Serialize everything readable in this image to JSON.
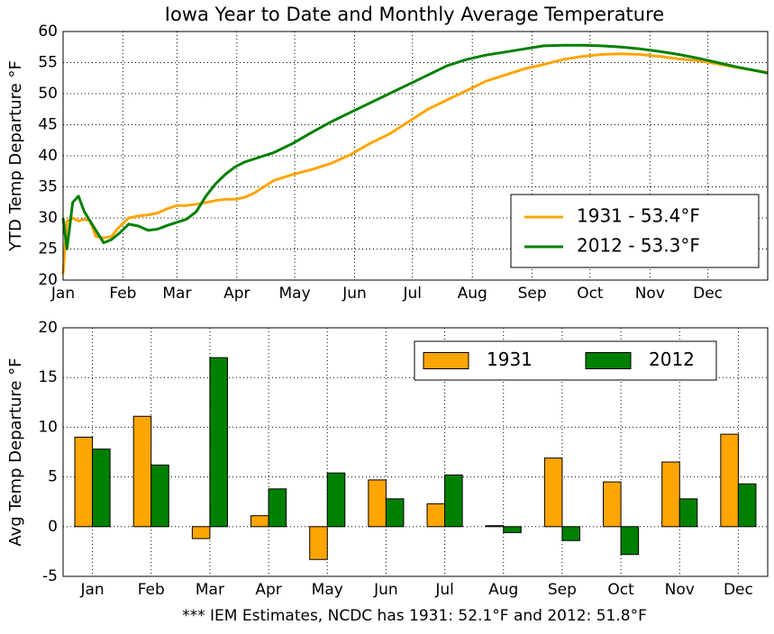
{
  "chart_data": [
    {
      "type": "line",
      "title": "Iowa Year to Date and Monthly Average Temperature",
      "y_label": "YTD Temp Departure °F",
      "x": [
        1,
        3,
        6,
        9,
        12,
        15,
        18,
        22,
        26,
        30,
        35,
        40,
        45,
        50,
        55,
        60,
        65,
        70,
        75,
        80,
        85,
        90,
        95,
        100,
        110,
        120,
        130,
        140,
        150,
        160,
        170,
        180,
        190,
        200,
        210,
        220,
        230,
        240,
        250,
        260,
        270,
        280,
        290,
        300,
        310,
        320,
        330,
        340,
        350,
        360,
        366
      ],
      "xlim": [
        1,
        366
      ],
      "xticks": [
        {
          "value": 1,
          "label": "Jan"
        },
        {
          "value": 32,
          "label": "Feb"
        },
        {
          "value": 60,
          "label": "Mar"
        },
        {
          "value": 91,
          "label": "Apr"
        },
        {
          "value": 121,
          "label": "May"
        },
        {
          "value": 152,
          "label": "Jun"
        },
        {
          "value": 182,
          "label": "Jul"
        },
        {
          "value": 213,
          "label": "Aug"
        },
        {
          "value": 244,
          "label": "Sep"
        },
        {
          "value": 274,
          "label": "Oct"
        },
        {
          "value": 305,
          "label": "Nov"
        },
        {
          "value": 335,
          "label": "Dec"
        }
      ],
      "ylim": [
        20,
        60
      ],
      "yticks": [
        20,
        25,
        30,
        35,
        40,
        45,
        50,
        55,
        60
      ],
      "grid": true,
      "legend": "lower right",
      "series": [
        {
          "name": "1931 - 53.4°F",
          "color": "#ffa500",
          "values": [
            21,
            29.5,
            30,
            29.5,
            29.8,
            29.5,
            27,
            26.8,
            27,
            28.5,
            30,
            30.3,
            30.5,
            30.8,
            31.5,
            32,
            32,
            32.2,
            32.5,
            32.8,
            33,
            33,
            33.3,
            34,
            36,
            37,
            37.8,
            38.8,
            40.2,
            42,
            43.5,
            45.5,
            47.5,
            49,
            50.5,
            52,
            53,
            54,
            54.7,
            55.5,
            56,
            56.3,
            56.4,
            56.3,
            56,
            55.6,
            55.3,
            54.8,
            54.2,
            53.7,
            53.4
          ]
        },
        {
          "name": "2012 - 53.3°F",
          "color": "#008000",
          "values": [
            30,
            25,
            32.5,
            33.5,
            31,
            29.5,
            28,
            26,
            26.5,
            27.5,
            29,
            28.7,
            28,
            28.2,
            28.8,
            29.3,
            29.8,
            31,
            33.5,
            35.5,
            37,
            38.2,
            39,
            39.5,
            40.5,
            42,
            43.8,
            45.5,
            47,
            48.5,
            50,
            51.5,
            53,
            54.5,
            55.5,
            56.2,
            56.7,
            57.2,
            57.7,
            57.8,
            57.8,
            57.7,
            57.5,
            57.2,
            56.8,
            56.3,
            55.7,
            55,
            54.3,
            53.7,
            53.3
          ]
        }
      ]
    },
    {
      "type": "bar",
      "y_label": "Avg Temp Departure °F",
      "categories": [
        "Jan",
        "Feb",
        "Mar",
        "Apr",
        "May",
        "Jun",
        "Jul",
        "Aug",
        "Sep",
        "Oct",
        "Nov",
        "Dec"
      ],
      "ylim": [
        -5,
        20
      ],
      "yticks": [
        -5,
        0,
        5,
        10,
        15,
        20
      ],
      "grid": true,
      "legend": "upper right",
      "series": [
        {
          "name": "1931",
          "color": "#ffa500",
          "values": [
            9.0,
            11.1,
            -1.2,
            1.1,
            -3.3,
            4.7,
            2.3,
            0.1,
            6.9,
            4.5,
            6.5,
            9.3
          ]
        },
        {
          "name": "2012",
          "color": "#008000",
          "values": [
            7.8,
            6.2,
            17.0,
            3.8,
            5.4,
            2.8,
            5.2,
            -0.6,
            -1.4,
            -2.8,
            2.8,
            4.3
          ]
        }
      ],
      "footnote": "*** IEM Estimates, NCDC has 1931: 52.1°F and 2012: 51.8°F"
    }
  ]
}
